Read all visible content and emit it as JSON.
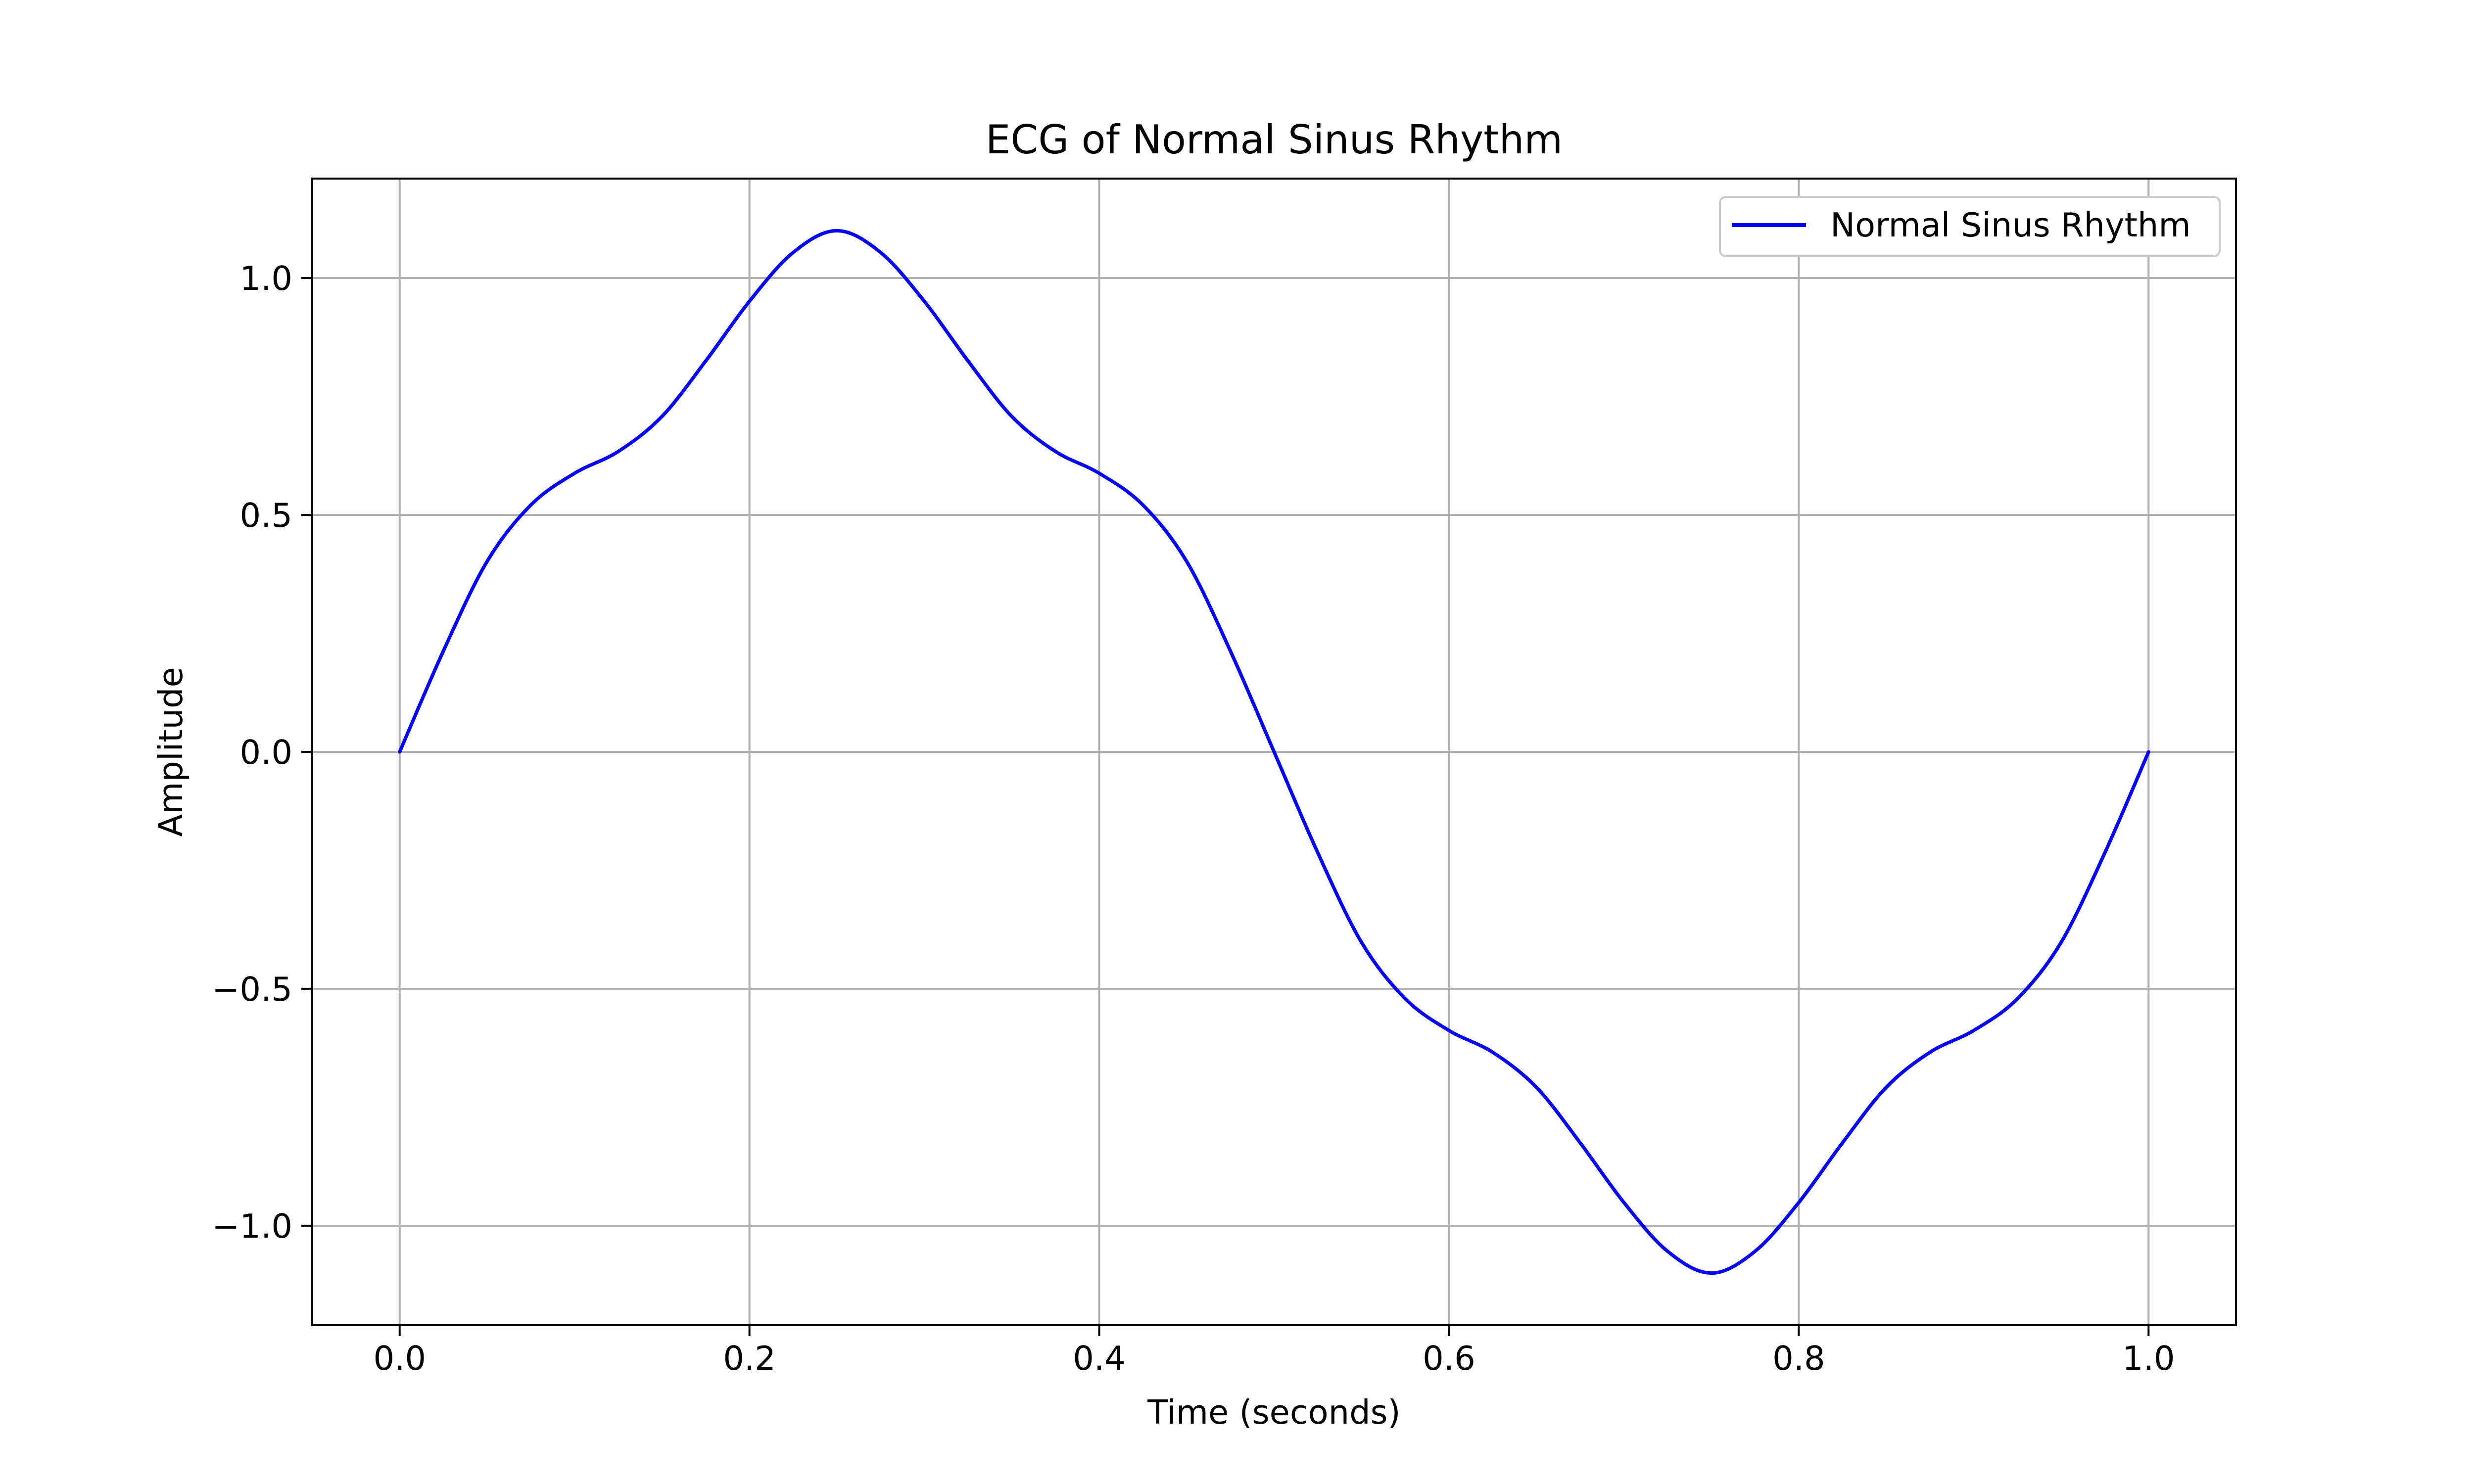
{
  "chart_data": {
    "type": "line",
    "title": "ECG of Normal Sinus Rhythm",
    "xlabel": "Time (seconds)",
    "ylabel": "Amplitude",
    "xlim": [
      -0.05,
      1.05
    ],
    "ylim": [
      -1.21,
      1.21
    ],
    "x_ticks": [
      0.0,
      0.2,
      0.4,
      0.6,
      0.8,
      1.0
    ],
    "x_tick_labels": [
      "0.0",
      "0.2",
      "0.4",
      "0.6",
      "0.8",
      "1.0"
    ],
    "y_ticks": [
      -1.0,
      -0.5,
      0.0,
      0.5,
      1.0
    ],
    "y_tick_labels": [
      "−1.0",
      "−0.5",
      "0.0",
      "0.5",
      "1.0"
    ],
    "grid": true,
    "legend": {
      "placement": "top-right",
      "entries": [
        "Normal Sinus Rhythm"
      ]
    },
    "series": [
      {
        "name": "Normal Sinus Rhythm",
        "color": "#0000ff",
        "x": [
          0.0,
          0.025,
          0.05,
          0.075,
          0.1,
          0.125,
          0.15,
          0.175,
          0.2,
          0.225,
          0.25,
          0.275,
          0.3,
          0.325,
          0.35,
          0.375,
          0.4,
          0.425,
          0.45,
          0.475,
          0.5,
          0.525,
          0.55,
          0.575,
          0.6,
          0.625,
          0.65,
          0.675,
          0.7,
          0.725,
          0.75,
          0.775,
          0.8,
          0.825,
          0.85,
          0.875,
          0.9,
          0.925,
          0.95,
          0.975,
          1.0
        ],
        "y": [
          0.0,
          0.213,
          0.402,
          0.521,
          0.588,
          0.634,
          0.708,
          0.825,
          0.951,
          1.054,
          1.1,
          1.054,
          0.951,
          0.825,
          0.708,
          0.634,
          0.588,
          0.521,
          0.402,
          0.213,
          0.0,
          -0.213,
          -0.402,
          -0.521,
          -0.588,
          -0.634,
          -0.708,
          -0.825,
          -0.951,
          -1.054,
          -1.1,
          -1.054,
          -0.951,
          -0.825,
          -0.708,
          -0.634,
          -0.588,
          -0.521,
          -0.402,
          -0.213,
          0.0
        ]
      }
    ]
  }
}
